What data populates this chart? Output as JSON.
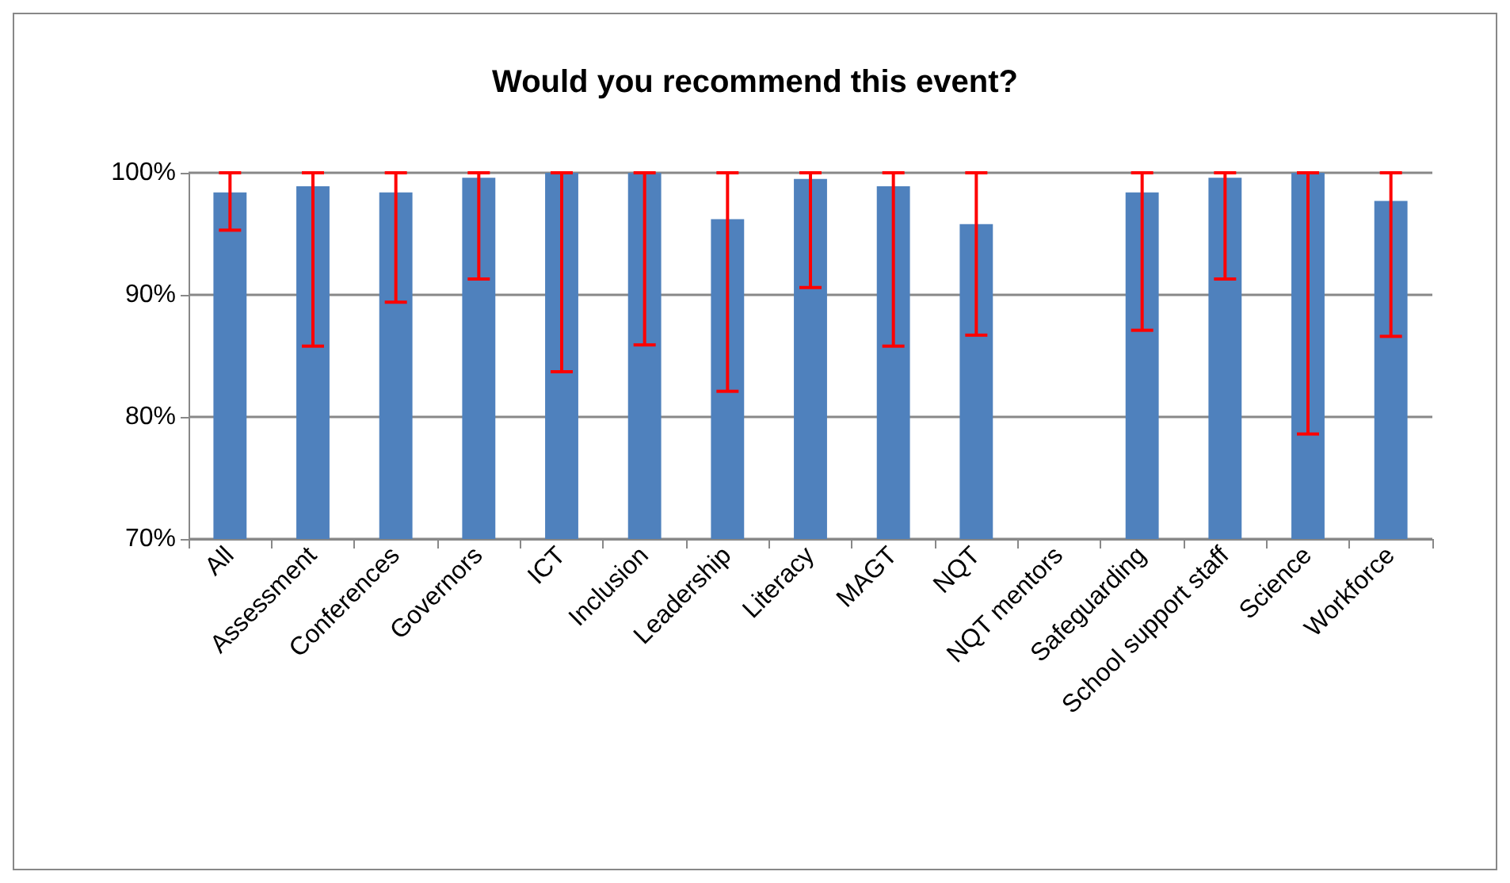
{
  "chart_data": {
    "type": "bar",
    "title": "Would you recommend this event?",
    "categories": [
      "All",
      "Assessment",
      "Conferences",
      "Governors",
      "ICT",
      "Inclusion",
      "Leadership",
      "Literacy",
      "MAGT",
      "NQT",
      "NQT mentors",
      "Safeguarding",
      "School support staff",
      "Science",
      "Workforce"
    ],
    "values": [
      98.4,
      98.9,
      98.4,
      99.6,
      100,
      100,
      96.2,
      99.5,
      98.9,
      95.8,
      null,
      98.4,
      99.6,
      100,
      97.7
    ],
    "errors": [
      [
        95.3,
        100
      ],
      [
        85.8,
        100
      ],
      [
        89.4,
        100
      ],
      [
        91.3,
        100
      ],
      [
        83.7,
        100
      ],
      [
        85.9,
        100
      ],
      [
        82.1,
        100
      ],
      [
        90.6,
        100
      ],
      [
        85.8,
        100
      ],
      [
        86.7,
        100
      ],
      null,
      [
        87.1,
        100
      ],
      [
        91.3,
        100
      ],
      [
        78.6,
        100
      ],
      [
        86.6,
        100
      ]
    ],
    "color": "#4f81bd",
    "ylim": [
      70,
      100
    ],
    "yticks": [
      {
        "value": 70,
        "label": "70%"
      },
      {
        "value": 80,
        "label": "80%"
      },
      {
        "value": 90,
        "label": "90%"
      },
      {
        "value": 100,
        "label": "100%"
      }
    ],
    "grid": "y"
  }
}
